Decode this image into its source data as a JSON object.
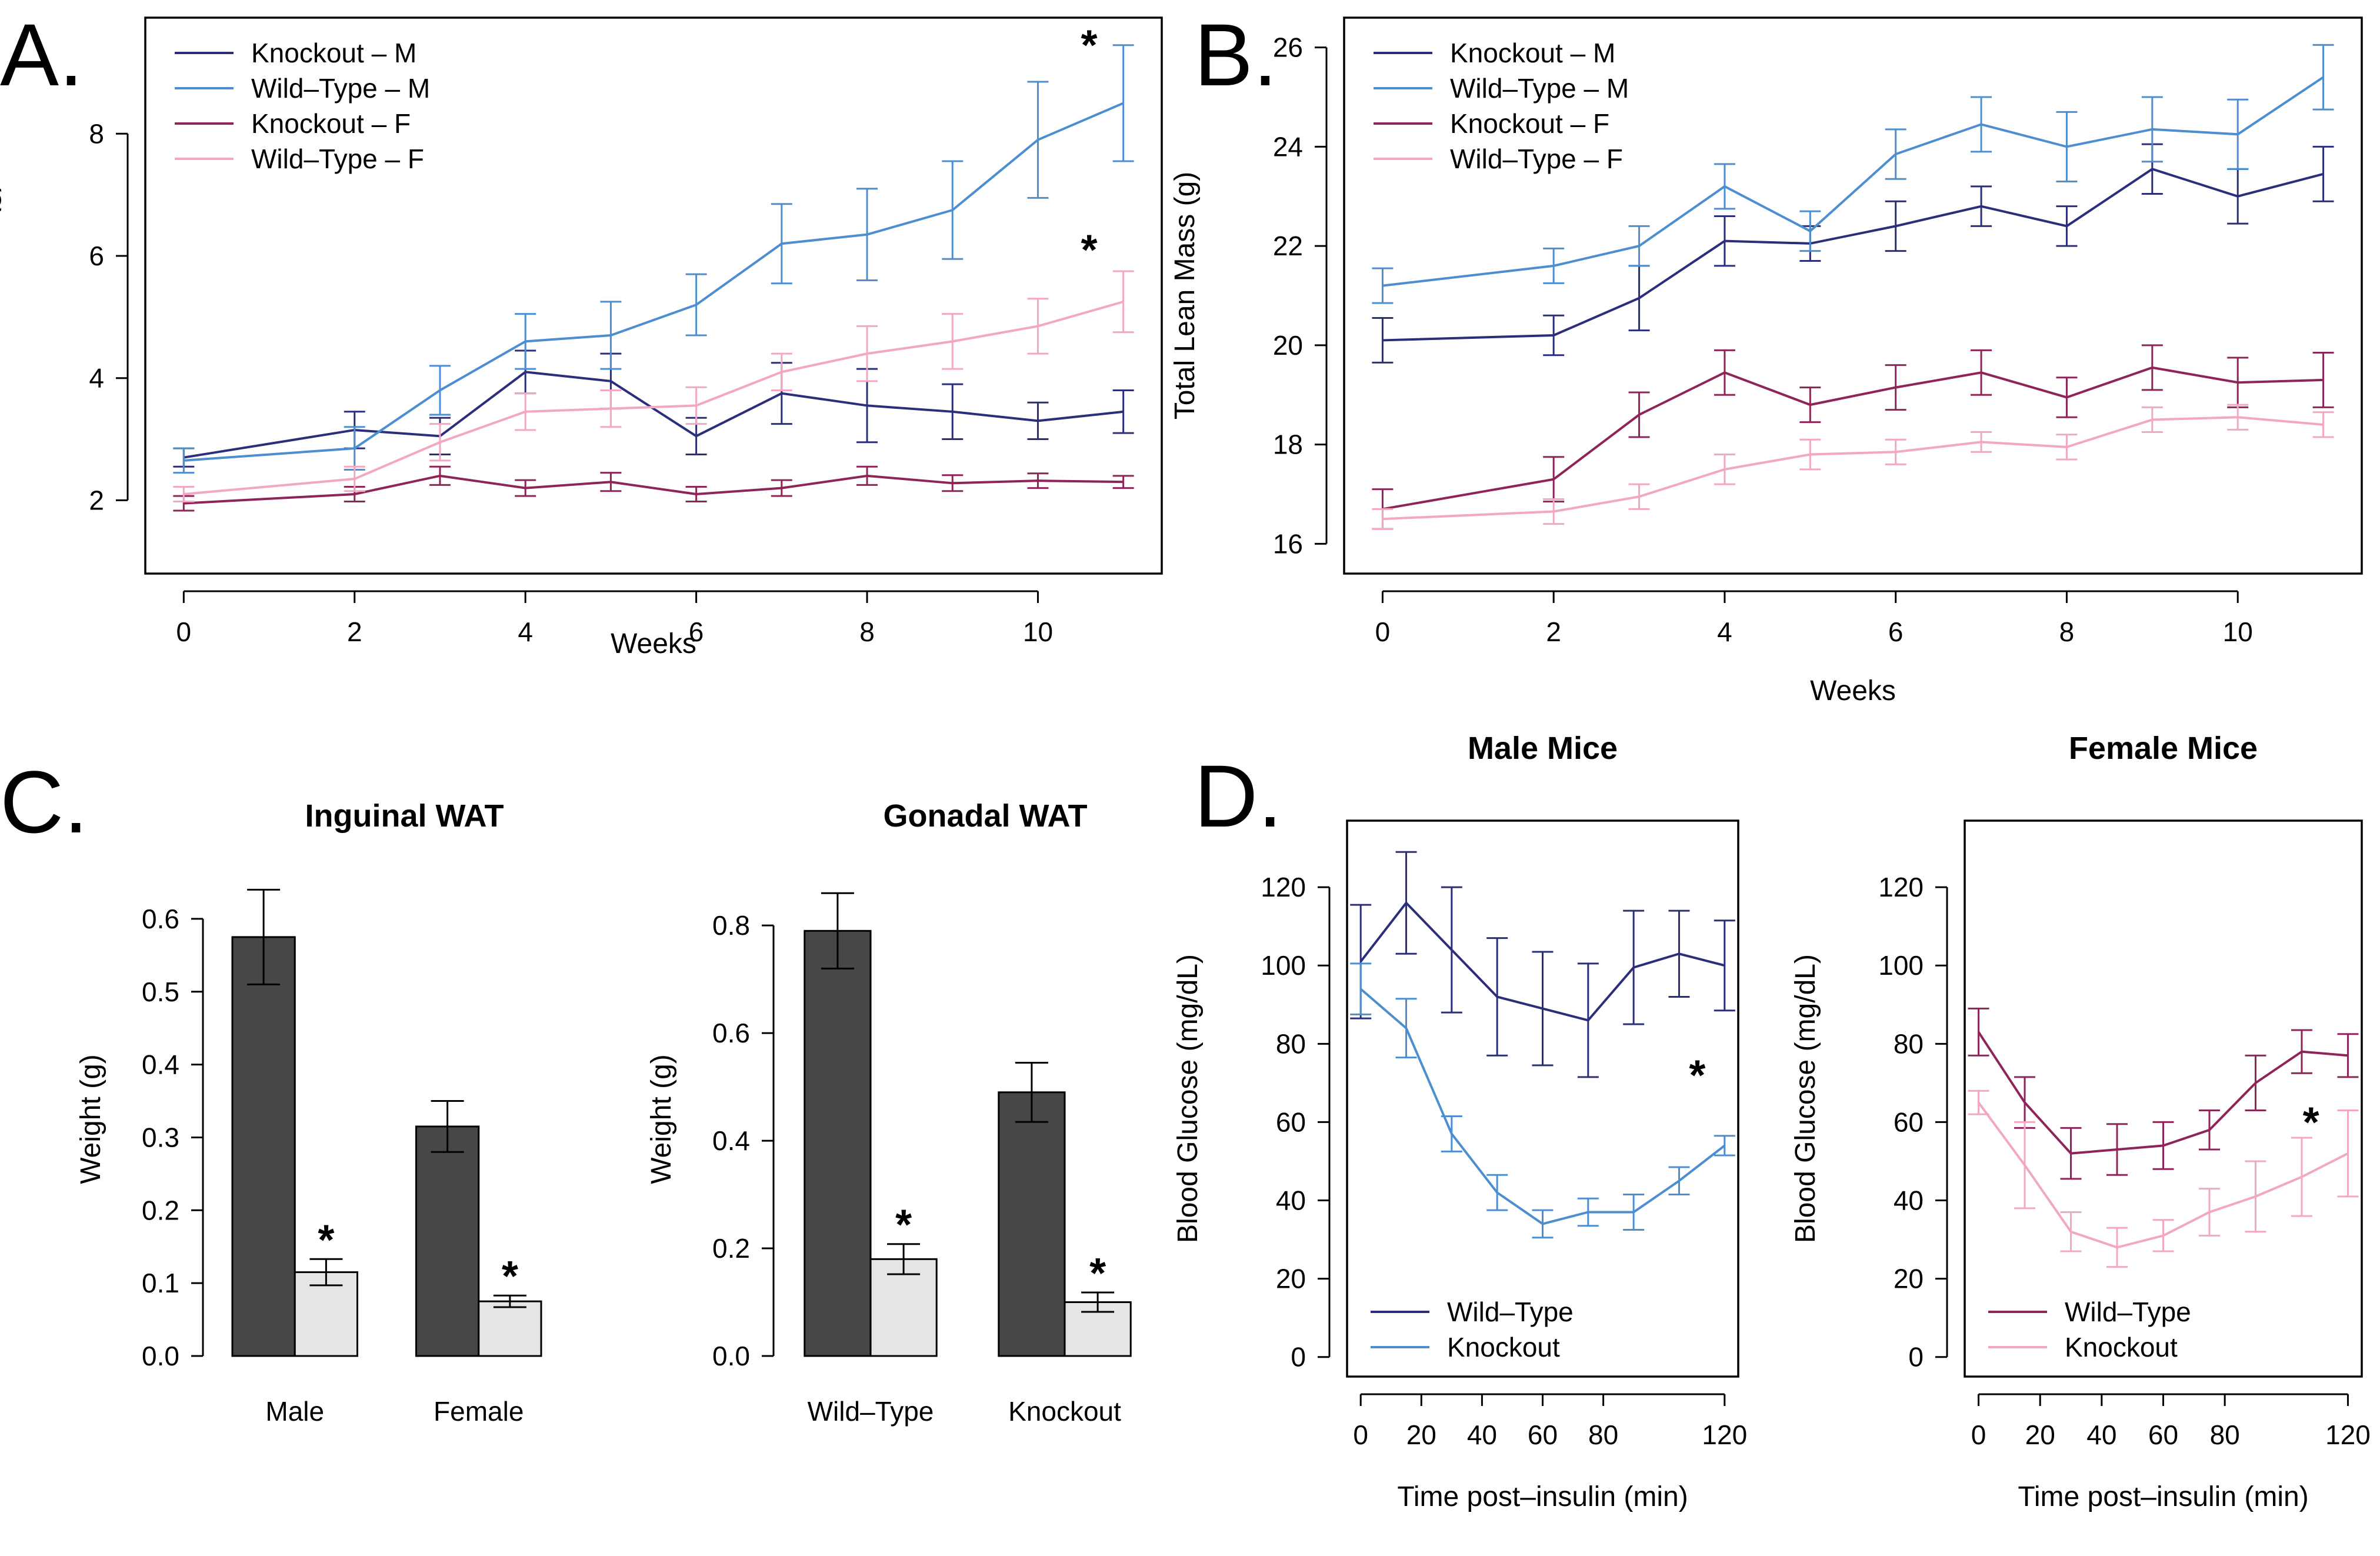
{
  "colors": {
    "ko_m": "#2B2E7A",
    "wt_m": "#4C8ED0",
    "ko_f": "#8E2458",
    "wt_f": "#F2A7C3",
    "bar_dark": "#474747",
    "bar_light": "#E4E5E6"
  },
  "chart_data": [
    {
      "id": "A",
      "panel_letter": "A.",
      "type": "line",
      "xlabel": "Weeks",
      "ylabel": "Total Fat Mass (g)",
      "x": [
        0,
        2,
        3,
        4,
        5,
        6,
        7,
        8,
        9,
        10,
        11
      ],
      "xlim": [
        -0.45,
        11.45
      ],
      "ylim": [
        0.8,
        9.9
      ],
      "xticks": [
        0,
        2,
        4,
        6,
        8,
        10
      ],
      "yticks": [
        2,
        4,
        6,
        8
      ],
      "legend_position": "top-left",
      "series": [
        {
          "name": "Knockout – M",
          "color_key": "ko_m",
          "values": [
            2.7,
            3.15,
            3.05,
            4.1,
            3.95,
            3.05,
            3.75,
            3.55,
            3.45,
            3.3,
            3.45
          ],
          "errors": [
            0.15,
            0.3,
            0.3,
            0.35,
            0.45,
            0.3,
            0.5,
            0.6,
            0.45,
            0.3,
            0.35
          ]
        },
        {
          "name": "Wild–Type – M",
          "color_key": "wt_m",
          "values": [
            2.65,
            2.85,
            3.8,
            4.6,
            4.7,
            5.2,
            6.2,
            6.35,
            6.75,
            7.9,
            8.5
          ],
          "errors": [
            0.2,
            0.35,
            0.4,
            0.45,
            0.55,
            0.5,
            0.65,
            0.75,
            0.8,
            0.95,
            0.95
          ]
        },
        {
          "name": "Knockout – F",
          "color_key": "ko_f",
          "values": [
            1.95,
            2.1,
            2.4,
            2.2,
            2.3,
            2.1,
            2.2,
            2.4,
            2.28,
            2.32,
            2.3
          ],
          "errors": [
            0.12,
            0.12,
            0.15,
            0.13,
            0.15,
            0.12,
            0.13,
            0.15,
            0.13,
            0.12,
            0.1
          ]
        },
        {
          "name": "Wild–Type – F",
          "color_key": "wt_f",
          "values": [
            2.1,
            2.35,
            2.95,
            3.45,
            3.5,
            3.55,
            4.1,
            4.4,
            4.6,
            4.85,
            5.25
          ],
          "errors": [
            0.12,
            0.2,
            0.3,
            0.3,
            0.3,
            0.3,
            0.3,
            0.45,
            0.45,
            0.45,
            0.5
          ]
        }
      ],
      "annotations": [
        {
          "text": "*",
          "x": 10.6,
          "y": 9.45
        },
        {
          "text": "*",
          "x": 10.6,
          "y": 6.1
        }
      ]
    },
    {
      "id": "B",
      "panel_letter": "B.",
      "type": "line",
      "xlabel": "Weeks",
      "ylabel": "Total Lean Mass (g)",
      "x": [
        0,
        2,
        3,
        4,
        5,
        6,
        7,
        8,
        9,
        10,
        11
      ],
      "xlim": [
        -0.45,
        11.45
      ],
      "ylim": [
        15.4,
        26.6
      ],
      "xticks": [
        0,
        2,
        4,
        6,
        8,
        10
      ],
      "yticks": [
        16,
        18,
        20,
        22,
        24,
        26
      ],
      "legend_position": "top-left",
      "series": [
        {
          "name": "Knockout – M",
          "color_key": "ko_m",
          "values": [
            20.1,
            20.2,
            20.95,
            22.1,
            22.05,
            22.4,
            22.8,
            22.4,
            23.55,
            23.0,
            23.45
          ],
          "errors": [
            0.45,
            0.4,
            0.65,
            0.5,
            0.35,
            0.5,
            0.4,
            0.4,
            0.5,
            0.55,
            0.55
          ]
        },
        {
          "name": "Wild–Type – M",
          "color_key": "wt_m",
          "values": [
            21.2,
            21.6,
            22.0,
            23.2,
            22.3,
            23.85,
            24.45,
            24.0,
            24.35,
            24.25,
            25.4
          ],
          "errors": [
            0.35,
            0.35,
            0.4,
            0.45,
            0.4,
            0.5,
            0.55,
            0.7,
            0.65,
            0.7,
            0.65
          ]
        },
        {
          "name": "Knockout – F",
          "color_key": "ko_f",
          "values": [
            16.7,
            17.3,
            18.6,
            19.45,
            18.8,
            19.15,
            19.45,
            18.95,
            19.55,
            19.25,
            19.3
          ],
          "errors": [
            0.4,
            0.45,
            0.45,
            0.45,
            0.35,
            0.45,
            0.45,
            0.4,
            0.45,
            0.5,
            0.55
          ]
        },
        {
          "name": "Wild–Type – F",
          "color_key": "wt_f",
          "values": [
            16.5,
            16.65,
            16.95,
            17.5,
            17.8,
            17.85,
            18.05,
            17.95,
            18.5,
            18.55,
            18.4
          ],
          "errors": [
            0.2,
            0.25,
            0.25,
            0.3,
            0.3,
            0.25,
            0.2,
            0.25,
            0.25,
            0.25,
            0.25
          ]
        }
      ]
    },
    {
      "id": "C1",
      "panel_letter": "C.",
      "type": "bar",
      "title": "Inguinal WAT",
      "ylabel": "Weight (g)",
      "categories": [
        "Male",
        "Female"
      ],
      "ylim": [
        0,
        0.65
      ],
      "yticks": [
        "0.0",
        "0.1",
        "0.2",
        "0.3",
        "0.4",
        "0.5",
        "0.6"
      ],
      "series": [
        {
          "color_key": "bar_dark",
          "values": [
            0.575,
            0.315
          ],
          "errors": [
            0.065,
            0.035
          ]
        },
        {
          "color_key": "bar_light",
          "values": [
            0.115,
            0.075
          ],
          "errors": [
            0.018,
            0.008
          ]
        }
      ],
      "annotations": [
        {
          "text": "*",
          "category_index": 0,
          "series_index": 1
        },
        {
          "text": "*",
          "category_index": 1,
          "series_index": 1
        }
      ]
    },
    {
      "id": "C2",
      "type": "bar",
      "title": "Gonadal WAT",
      "ylabel": "Weight (g)",
      "categories": [
        "Wild–Type",
        "Knockout"
      ],
      "ylim": [
        0,
        0.88
      ],
      "yticks": [
        "0.0",
        "0.2",
        "0.4",
        "0.6",
        "0.8"
      ],
      "series": [
        {
          "color_key": "bar_dark",
          "values": [
            0.79,
            0.49
          ],
          "errors": [
            0.07,
            0.055
          ]
        },
        {
          "color_key": "bar_light",
          "values": [
            0.18,
            0.1
          ],
          "errors": [
            0.028,
            0.018
          ]
        }
      ],
      "annotations": [
        {
          "text": "*",
          "category_index": 0,
          "series_index": 1
        },
        {
          "text": "*",
          "category_index": 1,
          "series_index": 1
        }
      ]
    },
    {
      "id": "D1",
      "panel_letter": "D.",
      "type": "line",
      "title": "Male Mice",
      "xlabel": "Time post–insulin (min)",
      "ylabel": "Blood Glucose (mg/dL)",
      "x": [
        0,
        15,
        30,
        45,
        60,
        75,
        90,
        105,
        120
      ],
      "xlim": [
        -4.5,
        124.5
      ],
      "ylim": [
        -5,
        137
      ],
      "xticks": [
        0,
        20,
        40,
        60,
        80,
        120
      ],
      "yticks": [
        0,
        20,
        40,
        60,
        80,
        100,
        120
      ],
      "legend_position": "bottom-left",
      "series": [
        {
          "name": "Wild–Type",
          "color_key": "ko_m",
          "values": [
            101,
            116,
            104,
            92,
            89,
            86,
            99.5,
            103,
            100
          ],
          "errors": [
            14.5,
            13,
            16,
            15,
            14.5,
            14.5,
            14.5,
            11,
            11.5
          ]
        },
        {
          "name": "Knockout",
          "color_key": "wt_m",
          "values": [
            94,
            84,
            57,
            42,
            34,
            37,
            37,
            45,
            54
          ],
          "errors": [
            6.5,
            7.5,
            4.5,
            4.5,
            3.5,
            3.5,
            4.5,
            3.5,
            2.5
          ]
        }
      ],
      "annotations": [
        {
          "text": "*",
          "x": 111,
          "y": 72
        }
      ]
    },
    {
      "id": "D2",
      "type": "line",
      "title": "Female Mice",
      "xlabel": "Time post–insulin (min)",
      "ylabel": "Blood Glucose (mg/dL)",
      "x": [
        0,
        15,
        30,
        45,
        60,
        75,
        90,
        105,
        120
      ],
      "xlim": [
        -4.5,
        124.5
      ],
      "ylim": [
        -5,
        137
      ],
      "xticks": [
        0,
        20,
        40,
        60,
        80,
        120
      ],
      "yticks": [
        0,
        20,
        40,
        60,
        80,
        100,
        120
      ],
      "legend_position": "bottom-left",
      "series": [
        {
          "name": "Wild–Type",
          "color_key": "ko_f",
          "values": [
            83,
            65,
            52,
            53,
            54,
            58,
            70,
            78,
            77
          ],
          "errors": [
            6,
            6.5,
            6.5,
            6.5,
            6,
            5,
            7,
            5.5,
            5.5
          ]
        },
        {
          "name": "Knockout",
          "color_key": "wt_f",
          "values": [
            65,
            49,
            32,
            28,
            31,
            37,
            41,
            46,
            52
          ],
          "errors": [
            3,
            11,
            5,
            5,
            4,
            6,
            9,
            10,
            11
          ]
        }
      ],
      "annotations": [
        {
          "text": "*",
          "x": 108,
          "y": 60
        }
      ]
    }
  ]
}
